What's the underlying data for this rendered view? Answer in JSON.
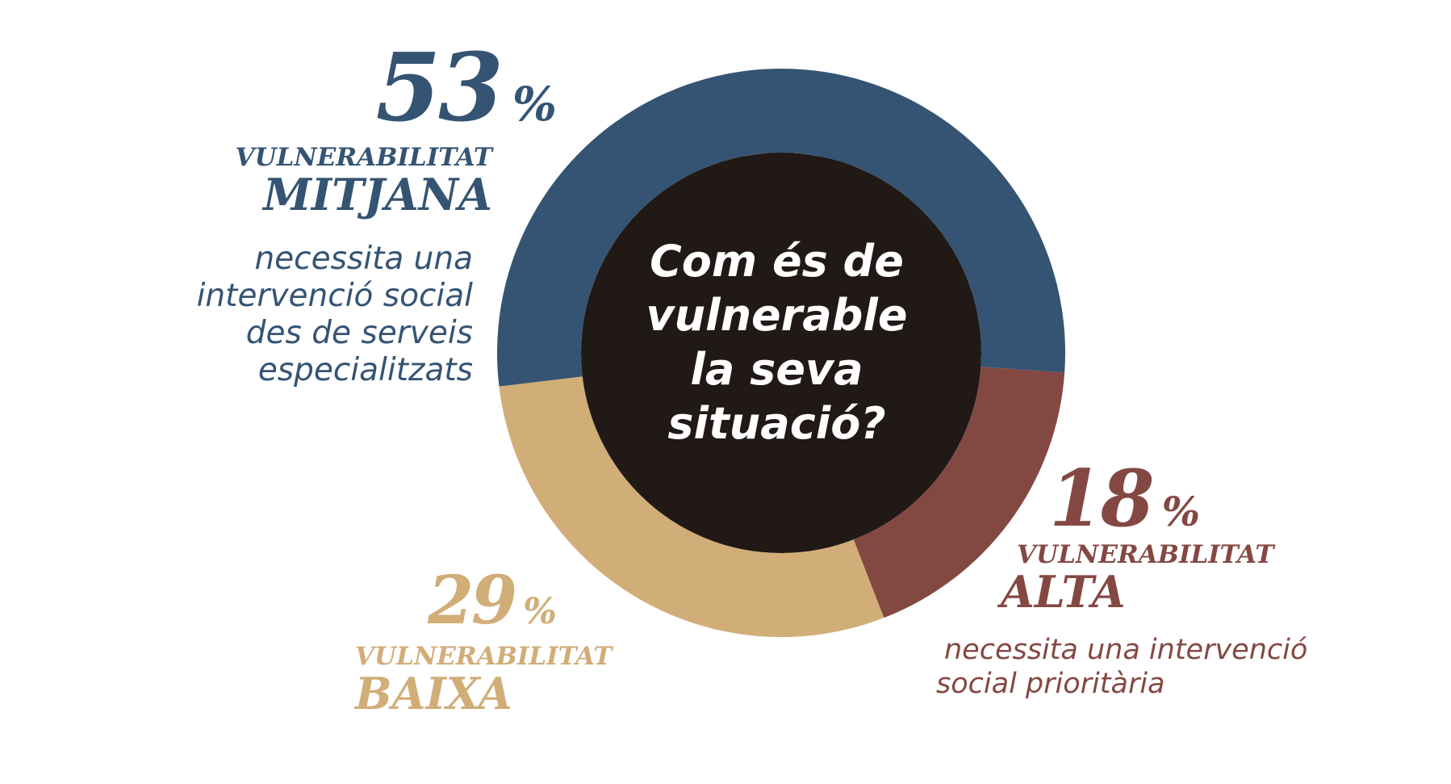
{
  "chart_data": {
    "type": "pie",
    "title": "Com és de vulnerable la seva situació?",
    "categories": [
      "VULNERABILITAT MITJANA",
      "VULNERABILITAT ALTA",
      "VULNERABILITAT BAIXA"
    ],
    "values": [
      53,
      18,
      29
    ],
    "unit": "%",
    "colors": [
      "#355473",
      "#844843",
      "#d1ad78"
    ],
    "center_color": "#211915"
  },
  "center_question_lines": [
    "Com és de",
    "vulnerable",
    "la seva",
    "situació?"
  ],
  "segments": {
    "mitjana": {
      "value": "53",
      "percent_sign": "%",
      "level_prefix": "VULNERABILITAT",
      "level": "MITJANA",
      "description_lines": [
        "necessita una",
        "intervenció social",
        "des de serveis",
        "especialitzats"
      ],
      "color": "#355473"
    },
    "alta": {
      "value": "18",
      "percent_sign": "%",
      "level_prefix": "VULNERABILITAT",
      "level": "ALTA",
      "description_lines": [
        "necessita una intervenció",
        "social prioritària"
      ],
      "color": "#844843"
    },
    "baixa": {
      "value": "29",
      "percent_sign": "%",
      "level_prefix": "VULNERABILITAT",
      "level": "BAIXA",
      "color": "#d1ad78"
    }
  }
}
